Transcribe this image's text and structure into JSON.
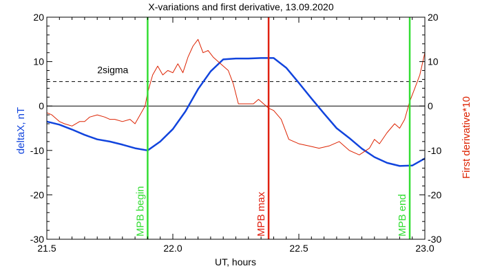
{
  "chart_data": {
    "type": "line",
    "title": "X-variations and first derivative, 13.09.2020",
    "xlabel": "UT, hours",
    "ylabel_left": "deltaX, nT",
    "ylabel_right": "First derivative*10",
    "xlim": [
      21.5,
      23.0
    ],
    "ylim": [
      -30,
      20
    ],
    "x_ticks": [
      21.5,
      22.0,
      22.5,
      23.0
    ],
    "x_tick_labels": [
      "21.5",
      "22.0",
      "22.5",
      "23.0"
    ],
    "y_ticks": [
      20,
      10,
      0,
      -10,
      -20,
      -30
    ],
    "y_tick_labels": [
      "20",
      "10",
      "0",
      "-10",
      "-20",
      "-30"
    ],
    "threshold": {
      "label": "2sigma",
      "value": 5.5
    },
    "zero_line": 0,
    "markers": [
      {
        "label": "MPB begin",
        "x": 21.9,
        "color": "#33dd33"
      },
      {
        "label": "MPB max",
        "x": 22.38,
        "color": "#e02010"
      },
      {
        "label": "MPB end",
        "x": 22.94,
        "color": "#33dd33"
      }
    ],
    "series": [
      {
        "name": "deltaX, nT",
        "color": "#1144dd",
        "x": [
          21.5,
          21.55,
          21.6,
          21.65,
          21.7,
          21.75,
          21.8,
          21.85,
          21.9,
          21.95,
          22.0,
          22.05,
          22.1,
          22.15,
          22.2,
          22.25,
          22.3,
          22.35,
          22.4,
          22.45,
          22.5,
          22.55,
          22.6,
          22.65,
          22.7,
          22.75,
          22.8,
          22.85,
          22.9,
          22.95,
          23.0
        ],
        "values": [
          -3.5,
          -4.2,
          -5.3,
          -6.5,
          -7.5,
          -8.0,
          -8.7,
          -9.5,
          -10.0,
          -8.0,
          -5.2,
          -1.2,
          3.8,
          7.8,
          10.5,
          10.7,
          10.7,
          10.8,
          10.8,
          8.6,
          5.2,
          1.7,
          -1.7,
          -5.0,
          -7.2,
          -9.6,
          -11.5,
          -12.8,
          -13.5,
          -13.4,
          -11.8
        ]
      },
      {
        "name": "First derivative*10",
        "color": "#dd2200",
        "x": [
          21.5,
          21.52,
          21.55,
          21.57,
          21.6,
          21.63,
          21.65,
          21.67,
          21.7,
          21.73,
          21.75,
          21.77,
          21.8,
          21.83,
          21.85,
          21.87,
          21.89,
          21.9,
          21.92,
          21.94,
          21.96,
          21.98,
          22.0,
          22.02,
          22.04,
          22.06,
          22.08,
          22.1,
          22.12,
          22.14,
          22.16,
          22.18,
          22.2,
          22.22,
          22.24,
          22.26,
          22.28,
          22.3,
          22.32,
          22.34,
          22.36,
          22.38,
          22.4,
          22.43,
          22.46,
          22.5,
          22.54,
          22.58,
          22.62,
          22.66,
          22.7,
          22.74,
          22.78,
          22.8,
          22.82,
          22.85,
          22.88,
          22.9,
          22.92,
          22.94,
          22.96,
          22.98,
          23.0
        ],
        "values": [
          -1.5,
          -2.0,
          -3.5,
          -4.0,
          -4.5,
          -3.5,
          -3.5,
          -2.5,
          -2.0,
          -2.5,
          -3.0,
          -3.0,
          -3.5,
          -3.0,
          -4.0,
          -2.0,
          0.0,
          3.0,
          7.0,
          9.0,
          7.0,
          8.0,
          7.5,
          9.5,
          7.5,
          11.0,
          13.5,
          15.0,
          12.0,
          12.5,
          11.0,
          10.0,
          9.0,
          8.0,
          5.0,
          0.5,
          0.5,
          0.5,
          0.5,
          1.5,
          0.5,
          -0.5,
          -1.0,
          -3.0,
          -7.5,
          -8.5,
          -9.0,
          -9.5,
          -9.0,
          -8.0,
          -10.0,
          -11.0,
          -9.5,
          -7.5,
          -8.5,
          -6.0,
          -4.0,
          -5.0,
          -3.0,
          1.0,
          4.0,
          7.0,
          12.0
        ]
      }
    ],
    "grid": false,
    "legend": "none"
  }
}
